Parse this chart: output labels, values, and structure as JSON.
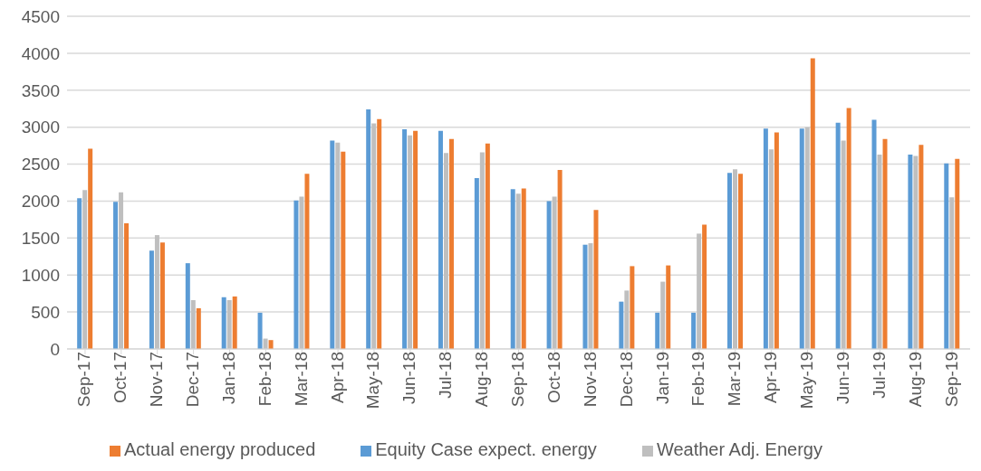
{
  "chart_data": {
    "type": "bar",
    "categories": [
      "Sep-17",
      "Oct-17",
      "Nov-17",
      "Dec-17",
      "Jan-18",
      "Feb-18",
      "Mar-18",
      "Apr-18",
      "May-18",
      "Jun-18",
      "Jul-18",
      "Aug-18",
      "Sep-18",
      "Oct-18",
      "Nov-18",
      "Dec-18",
      "Jan-19",
      "Feb-19",
      "Mar-19",
      "Apr-19",
      "May-19",
      "Jun-19",
      "Jul-19",
      "Aug-19",
      "Sep-19"
    ],
    "series": [
      {
        "name": "Equity Case expect. energy",
        "color": "#5b9bd5",
        "values": [
          2040,
          1990,
          1330,
          1160,
          700,
          490,
          2010,
          2820,
          3240,
          2970,
          2950,
          2310,
          2160,
          2000,
          1410,
          640,
          490,
          490,
          2380,
          2980,
          2980,
          3060,
          3100,
          2630,
          2510
        ]
      },
      {
        "name": "Weather Adj. Energy",
        "color": "#bfbfbf",
        "values": [
          2150,
          2120,
          1540,
          660,
          660,
          140,
          2060,
          2790,
          3050,
          2890,
          2650,
          2660,
          2100,
          2060,
          1430,
          790,
          910,
          1560,
          2430,
          2700,
          3000,
          2820,
          2630,
          2610,
          2050
        ]
      },
      {
        "name": "Actual energy produced",
        "color": "#ed7d31",
        "values": [
          2710,
          1700,
          1440,
          550,
          710,
          120,
          2370,
          2670,
          3110,
          2950,
          2840,
          2780,
          2170,
          2420,
          1880,
          1120,
          1130,
          1680,
          2370,
          2930,
          3930,
          3260,
          2840,
          2760,
          2570
        ]
      }
    ],
    "ylim": [
      0,
      4500
    ],
    "yticks": [
      0,
      500,
      1000,
      1500,
      2000,
      2500,
      3000,
      3500,
      4000,
      4500
    ],
    "grid": "y",
    "legend": "bottom"
  }
}
